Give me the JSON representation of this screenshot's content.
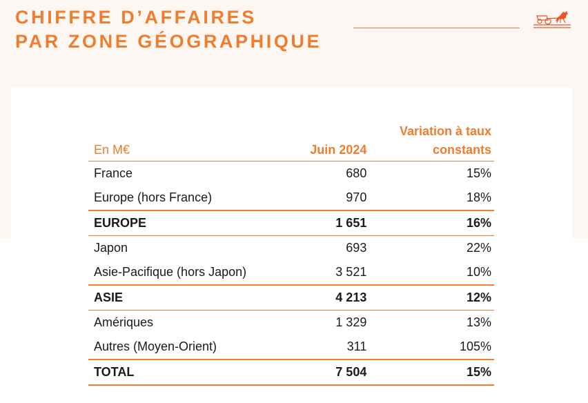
{
  "header": {
    "title_line1": "CHIFFRE D’AFFAIRES",
    "title_line2": "PAR ZONE GÉOGRAPHIQUE",
    "logo_icon": "horse-carriage-logo-icon",
    "accent_color": "#f07d2d"
  },
  "table": {
    "unit_label": "En M€",
    "col_period": "Juin 2024",
    "col_variation_line1": "Variation à taux",
    "col_variation_line2": "constants",
    "rows": [
      {
        "label": "France",
        "value": "680",
        "variation": "15%"
      },
      {
        "label": "Europe (hors France)",
        "value": "970",
        "variation": "18%"
      },
      {
        "label": "EUROPE",
        "value": "1 651",
        "variation": "16%"
      },
      {
        "label": "Japon",
        "value": "693",
        "variation": "22%"
      },
      {
        "label": "Asie-Pacifique (hors Japon)",
        "value": "3 521",
        "variation": "10%"
      },
      {
        "label": "ASIE",
        "value": "4 213",
        "variation": "12%"
      },
      {
        "label": "Amériques",
        "value": "1 329",
        "variation": "13%"
      },
      {
        "label": "Autres (Moyen-Orient)",
        "value": "311",
        "variation": "105%"
      },
      {
        "label": "TOTAL",
        "value": "7 504",
        "variation": "15%"
      }
    ]
  }
}
